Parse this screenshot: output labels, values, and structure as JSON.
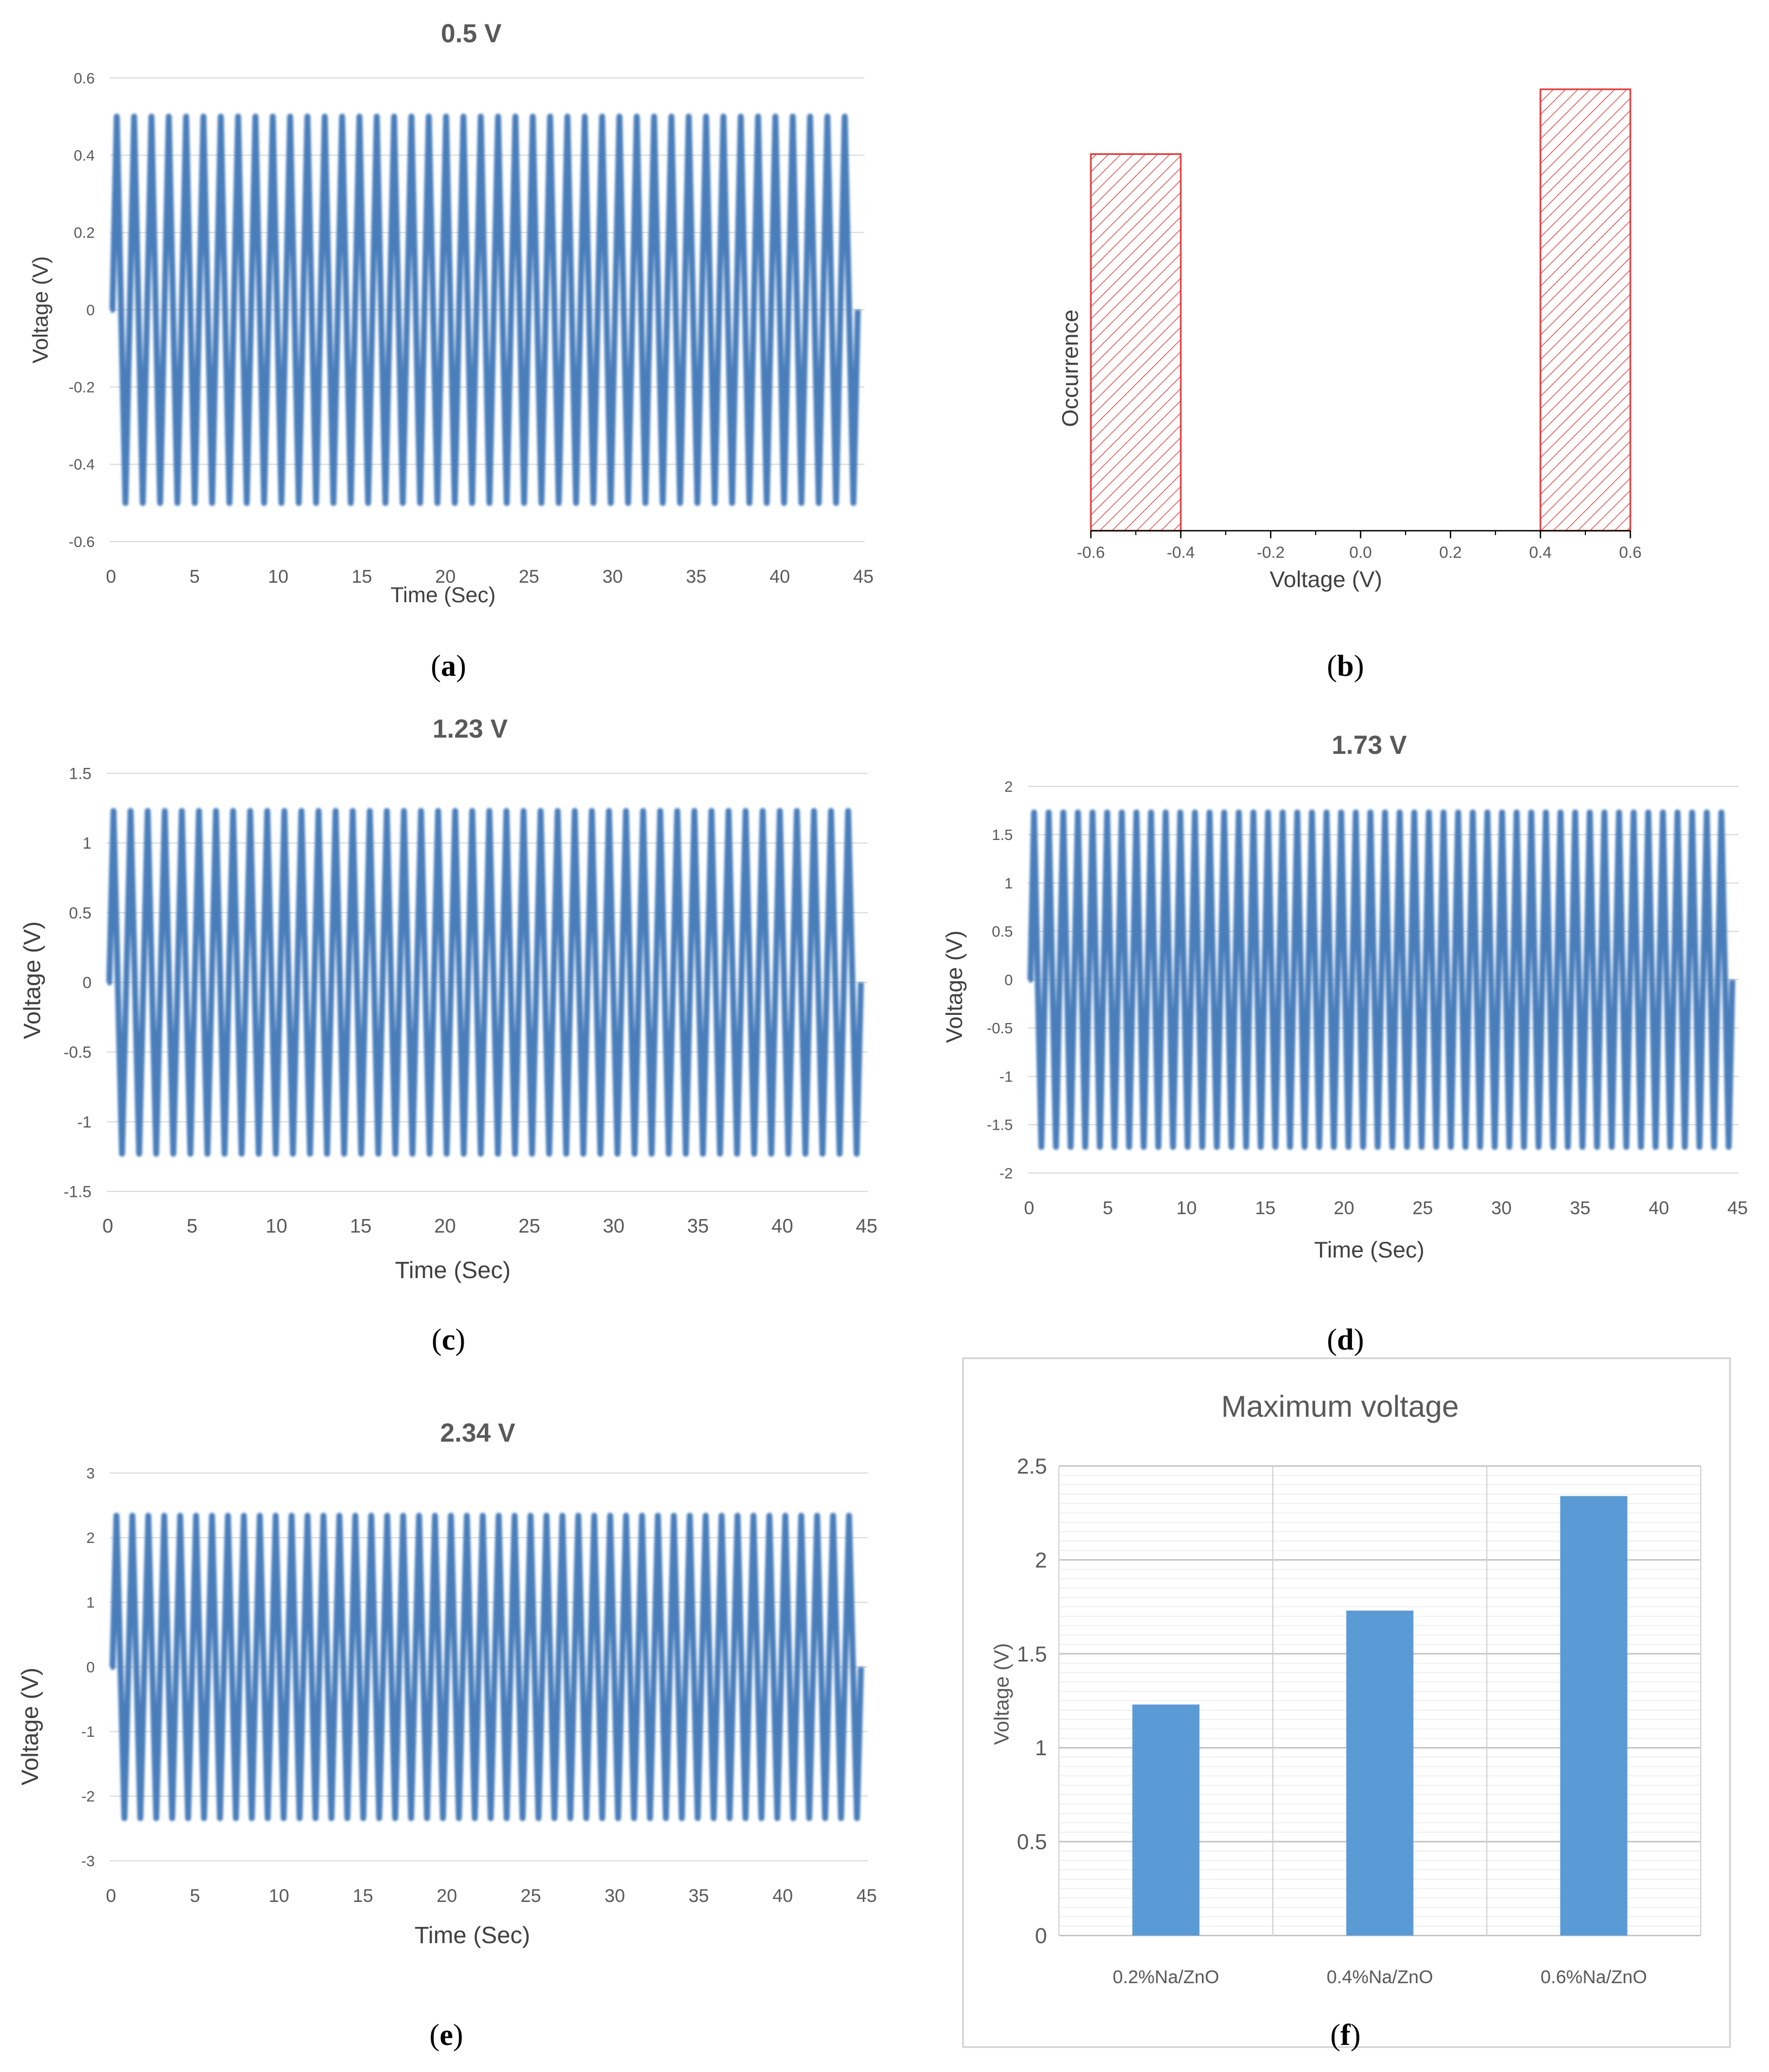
{
  "colors": {
    "wave": "#4a7ebb",
    "bar": "#5b9bd5",
    "hist": "#e03a3a",
    "grid": "#d9d9d9",
    "text": "#595959"
  },
  "panels": {
    "a": {
      "label": "a",
      "title": "0.5 V",
      "xlabel": "Time (Sec)",
      "ylabel": "Voltage (V)",
      "yticks": [
        "0.6",
        "0.4",
        "0.2",
        "0",
        "-0.2",
        "-0.4",
        "-0.6"
      ],
      "xticks": [
        "0",
        "5",
        "10",
        "15",
        "20",
        "25",
        "30",
        "35",
        "40",
        "45"
      ]
    },
    "b": {
      "label": "b",
      "xlabel": "Voltage (V)",
      "ylabel": "Occurrence",
      "xticks": [
        "-0.6",
        "-0.4",
        "-0.2",
        "0.0",
        "0.2",
        "0.4",
        "0.6"
      ]
    },
    "c": {
      "label": "c",
      "title": "1.23 V",
      "xlabel": "Time (Sec)",
      "ylabel": "Voltage (V)",
      "yticks": [
        "1.5",
        "1",
        "0.5",
        "0",
        "-0.5",
        "-1",
        "-1.5"
      ],
      "xticks": [
        "0",
        "5",
        "10",
        "15",
        "20",
        "25",
        "30",
        "35",
        "40",
        "45"
      ]
    },
    "d": {
      "label": "d",
      "title": "1.73 V",
      "xlabel": "Time (Sec)",
      "ylabel": "Voltage (V)",
      "yticks": [
        "2",
        "1.5",
        "1",
        "0.5",
        "0",
        "-0.5",
        "-1",
        "-1.5",
        "-2"
      ],
      "xticks": [
        "0",
        "5",
        "10",
        "15",
        "20",
        "25",
        "30",
        "35",
        "40",
        "45"
      ]
    },
    "e": {
      "label": "e",
      "title": "2.34 V",
      "xlabel": "Time (Sec)",
      "ylabel": "Voltage (V)",
      "yticks": [
        "3",
        "2",
        "1",
        "0",
        "-1",
        "-2",
        "-3"
      ],
      "xticks": [
        "0",
        "5",
        "10",
        "15",
        "20",
        "25",
        "30",
        "35",
        "40",
        "45"
      ]
    },
    "f": {
      "label": "f",
      "title": "Maximum voltage",
      "ylabel": "Voltage (V)",
      "yticks": [
        "2.5",
        "2",
        "1.5",
        "1",
        "0.5",
        "0"
      ]
    }
  },
  "chart_data": [
    {
      "id": "a",
      "type": "line",
      "title": "0.5 V",
      "xlabel": "Time (Sec)",
      "ylabel": "Voltage (V)",
      "xlim": [
        0,
        45
      ],
      "ylim": [
        -0.6,
        0.6
      ],
      "amplitude": 0.5,
      "cycles": 43,
      "grid": true
    },
    {
      "id": "b",
      "type": "bar",
      "subtype": "histogram",
      "xlabel": "Voltage (V)",
      "ylabel": "Occurrence",
      "xlim": [
        -0.6,
        0.6
      ],
      "ylim": [
        0,
        1.15
      ],
      "bins": [
        {
          "from": -0.6,
          "to": -0.4,
          "value": 0.93
        },
        {
          "from": 0.4,
          "to": 0.6,
          "value": 1.09
        }
      ]
    },
    {
      "id": "c",
      "type": "line",
      "title": "1.23 V",
      "xlabel": "Time (Sec)",
      "ylabel": "Voltage (V)",
      "xlim": [
        0,
        45
      ],
      "ylim": [
        -1.5,
        1.5
      ],
      "amplitude": 1.23,
      "cycles": 44,
      "grid": true
    },
    {
      "id": "d",
      "type": "line",
      "title": "1.73 V",
      "xlabel": "Time (Sec)",
      "ylabel": "Voltage (V)",
      "xlim": [
        0,
        45
      ],
      "ylim": [
        -2,
        2
      ],
      "amplitude": 1.73,
      "cycles": 48,
      "grid": true
    },
    {
      "id": "e",
      "type": "line",
      "title": "2.34 V",
      "xlabel": "Time (Sec)",
      "ylabel": "Voltage (V)",
      "xlim": [
        0,
        45
      ],
      "ylim": [
        -3,
        3
      ],
      "amplitude": 2.34,
      "cycles": 47,
      "grid": true
    },
    {
      "id": "f",
      "type": "bar",
      "title": "Maximum voltage",
      "ylabel": "Voltage (V)",
      "categories": [
        "0.2%Na/ZnO",
        "0.4%Na/ZnO",
        "0.6%Na/ZnO"
      ],
      "values": [
        1.23,
        1.73,
        2.34
      ],
      "ylim": [
        0,
        2.5
      ]
    }
  ]
}
